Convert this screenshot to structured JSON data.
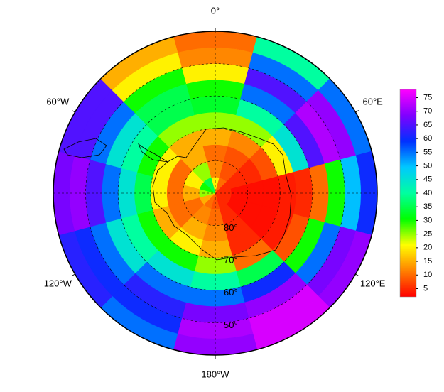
{
  "chart_data": {
    "type": "polar-heatmap",
    "lat_range": [
      90,
      40
    ],
    "lon_ticks": [
      {
        "value": 0,
        "label": "0°"
      },
      {
        "value": 60,
        "label": "60°E"
      },
      {
        "value": 120,
        "label": "120°E"
      },
      {
        "value": 180,
        "label": "180°W"
      },
      {
        "value": 240,
        "label": "120°W"
      },
      {
        "value": 300,
        "label": "60°W"
      }
    ],
    "lat_ticks": [
      {
        "value": 80,
        "label": "80°"
      },
      {
        "value": 70,
        "label": "70°"
      },
      {
        "value": 60,
        "label": "60°"
      },
      {
        "value": 50,
        "label": "50°"
      }
    ],
    "values": [
      [
        20,
        10,
        5,
        5,
        5,
        5,
        8,
        10,
        15,
        25,
        30,
        35
      ],
      [
        12,
        8,
        5,
        3,
        3,
        5,
        10,
        12,
        10,
        15,
        20,
        25
      ],
      [
        10,
        8,
        5,
        3,
        3,
        5,
        12,
        15,
        10,
        10,
        10,
        15
      ],
      [
        15,
        12,
        8,
        3,
        3,
        5,
        15,
        20,
        15,
        20,
        20,
        15
      ],
      [
        25,
        25,
        20,
        4,
        4,
        10,
        25,
        30,
        30,
        35,
        30,
        25
      ],
      [
        33,
        40,
        45,
        5,
        8,
        35,
        40,
        45,
        40,
        45,
        40,
        35
      ],
      [
        30,
        55,
        65,
        10,
        30,
        60,
        55,
        55,
        45,
        55,
        45,
        35
      ],
      [
        20,
        65,
        72,
        30,
        55,
        70,
        68,
        62,
        55,
        65,
        55,
        30
      ],
      [
        12,
        55,
        70,
        50,
        68,
        75,
        72,
        60,
        60,
        70,
        65,
        20
      ],
      [
        10,
        40,
        55,
        60,
        70,
        75,
        70,
        55,
        62,
        68,
        65,
        15
      ]
    ],
    "clim": [
      2,
      78
    ],
    "cticks": [
      5,
      10,
      15,
      20,
      25,
      30,
      35,
      40,
      45,
      50,
      55,
      60,
      65,
      70,
      75
    ],
    "colormap": [
      "#ff0000",
      "#ff8000",
      "#ffff00",
      "#00ff00",
      "#00ffa0",
      "#00c8ff",
      "#0030ff",
      "#8000ff",
      "#ff00ff"
    ]
  }
}
